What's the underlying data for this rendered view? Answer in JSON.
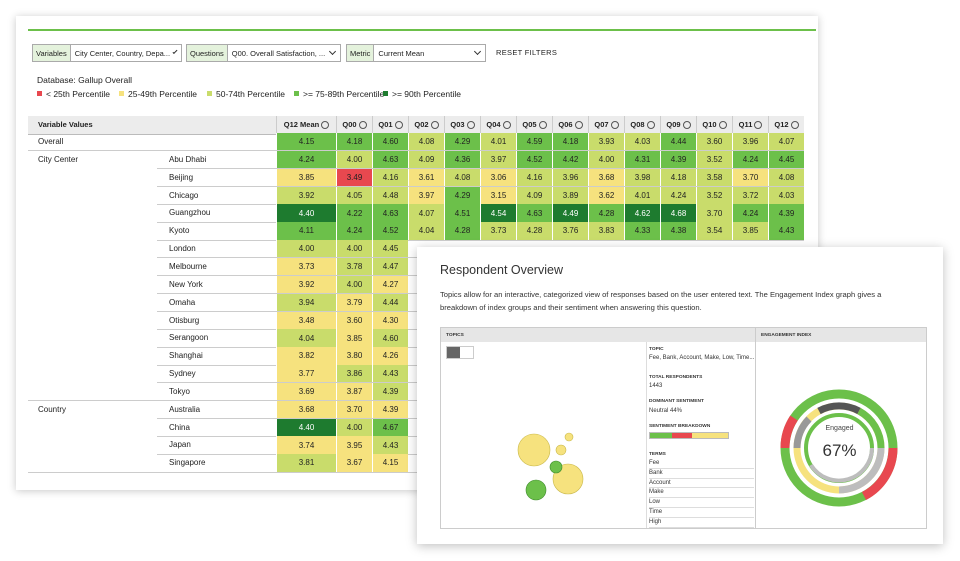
{
  "filters": [
    {
      "label": "Variables",
      "value": "City Center, Country, Depa..."
    },
    {
      "label": "Questions",
      "value": "Q00. Overall Satisfaction, ..."
    },
    {
      "label": "Metric",
      "value": "Current Mean"
    }
  ],
  "reset": "RESET FILTERS",
  "database": "Database: Gallup Overall",
  "legend": [
    {
      "label": "< 25th Percentile",
      "color": "#e8484f"
    },
    {
      "label": "25-49th Percentile",
      "color": "#f6e27e"
    },
    {
      "label": "50-74th Percentile",
      "color": "#c9dc6b"
    },
    {
      "label": ">= 75-89th Percentile",
      "color": "#6cc04a"
    },
    {
      "label": ">= 90th Percentile",
      "color": "#1e7b2f"
    }
  ],
  "table": {
    "columns": [
      "Variable Values",
      "Q12 Mean",
      "Q00",
      "Q01",
      "Q02",
      "Q03",
      "Q04",
      "Q05",
      "Q06",
      "Q07",
      "Q08",
      "Q09",
      "Q10",
      "Q11",
      "Q12"
    ],
    "rows": [
      {
        "group": "Overall",
        "values": [
          "4.15",
          "4.18",
          "4.60",
          "4.08",
          "4.29",
          "4.01",
          "4.59",
          "4.18",
          "3.93",
          "4.03",
          "4.44",
          "3.60",
          "3.96",
          "4.07"
        ],
        "colors": [
          "#6cc04a",
          "#6cc04a",
          "#6cc04a",
          "#c9dc6b",
          "#6cc04a",
          "#c9dc6b",
          "#6cc04a",
          "#6cc04a",
          "#c9dc6b",
          "#c9dc6b",
          "#6cc04a",
          "#c9dc6b",
          "#c9dc6b",
          "#c9dc6b"
        ]
      },
      {
        "group": "City Center",
        "label": "Abu Dhabi",
        "values": [
          "4.24",
          "4.00",
          "4.63",
          "4.09",
          "4.36",
          "3.97",
          "4.52",
          "4.42",
          "4.00",
          "4.31",
          "4.39",
          "3.52",
          "4.24",
          "4.45"
        ],
        "colors": [
          "#6cc04a",
          "#c9dc6b",
          "#6cc04a",
          "#c9dc6b",
          "#6cc04a",
          "#c9dc6b",
          "#6cc04a",
          "#6cc04a",
          "#c9dc6b",
          "#6cc04a",
          "#6cc04a",
          "#c9dc6b",
          "#6cc04a",
          "#6cc04a"
        ]
      },
      {
        "label": "Beijing",
        "values": [
          "3.85",
          "3.49",
          "4.16",
          "3.61",
          "4.08",
          "3.06",
          "4.16",
          "3.96",
          "3.68",
          "3.98",
          "4.18",
          "3.58",
          "3.70",
          "4.08"
        ],
        "colors": [
          "#f6e27e",
          "#e8484f",
          "#c9dc6b",
          "#f6e27e",
          "#c9dc6b",
          "#f6e27e",
          "#c9dc6b",
          "#c9dc6b",
          "#f6e27e",
          "#c9dc6b",
          "#c9dc6b",
          "#c9dc6b",
          "#f6e27e",
          "#c9dc6b"
        ]
      },
      {
        "label": "Chicago",
        "values": [
          "3.92",
          "4.05",
          "4.48",
          "3.97",
          "4.29",
          "3.15",
          "4.09",
          "3.89",
          "3.62",
          "4.01",
          "4.24",
          "3.52",
          "3.72",
          "4.03"
        ],
        "colors": [
          "#c9dc6b",
          "#c9dc6b",
          "#c9dc6b",
          "#f6e27e",
          "#6cc04a",
          "#f6e27e",
          "#c9dc6b",
          "#c9dc6b",
          "#f6e27e",
          "#c9dc6b",
          "#c9dc6b",
          "#c9dc6b",
          "#c9dc6b",
          "#c9dc6b"
        ]
      },
      {
        "label": "Guangzhou",
        "values": [
          "4.40",
          "4.22",
          "4.63",
          "4.07",
          "4.51",
          "4.54",
          "4.63",
          "4.49",
          "4.28",
          "4.62",
          "4.68",
          "3.70",
          "4.24",
          "4.39"
        ],
        "colors": [
          "#1e7b2f",
          "#6cc04a",
          "#6cc04a",
          "#c9dc6b",
          "#6cc04a",
          "#1e7b2f",
          "#6cc04a",
          "#1e7b2f",
          "#6cc04a",
          "#1e7b2f",
          "#1e7b2f",
          "#c9dc6b",
          "#6cc04a",
          "#6cc04a"
        ]
      },
      {
        "label": "Kyoto",
        "values": [
          "4.11",
          "4.24",
          "4.52",
          "4.04",
          "4.28",
          "3.73",
          "4.28",
          "3.76",
          "3.83",
          "4.33",
          "4.38",
          "3.54",
          "3.85",
          "4.43"
        ],
        "colors": [
          "#6cc04a",
          "#6cc04a",
          "#6cc04a",
          "#c9dc6b",
          "#6cc04a",
          "#c9dc6b",
          "#c9dc6b",
          "#c9dc6b",
          "#c9dc6b",
          "#6cc04a",
          "#6cc04a",
          "#c9dc6b",
          "#c9dc6b",
          "#6cc04a"
        ]
      },
      {
        "label": "London",
        "values": [
          "4.00",
          "4.00",
          "4.45"
        ],
        "colors": [
          "#c9dc6b",
          "#c9dc6b",
          "#c9dc6b"
        ]
      },
      {
        "label": "Melbourne",
        "values": [
          "3.73",
          "3.78",
          "4.47"
        ],
        "colors": [
          "#f6e27e",
          "#c9dc6b",
          "#c9dc6b"
        ]
      },
      {
        "label": "New York",
        "values": [
          "3.92",
          "4.00",
          "4.27"
        ],
        "colors": [
          "#f6e27e",
          "#c9dc6b",
          "#f6e27e"
        ]
      },
      {
        "label": "Omaha",
        "values": [
          "3.94",
          "3.79",
          "4.44"
        ],
        "colors": [
          "#c9dc6b",
          "#f6e27e",
          "#c9dc6b"
        ]
      },
      {
        "label": "Otisburg",
        "values": [
          "3.48",
          "3.60",
          "4.30"
        ],
        "colors": [
          "#f6e27e",
          "#f6e27e",
          "#f6e27e"
        ]
      },
      {
        "label": "Serangoon",
        "values": [
          "4.04",
          "3.85",
          "4.60"
        ],
        "colors": [
          "#c9dc6b",
          "#f6e27e",
          "#c9dc6b"
        ]
      },
      {
        "label": "Shanghai",
        "values": [
          "3.82",
          "3.80",
          "4.26"
        ],
        "colors": [
          "#f6e27e",
          "#f6e27e",
          "#f6e27e"
        ]
      },
      {
        "label": "Sydney",
        "values": [
          "3.77",
          "3.86",
          "4.43"
        ],
        "colors": [
          "#f6e27e",
          "#c9dc6b",
          "#c9dc6b"
        ]
      },
      {
        "label": "Tokyo",
        "values": [
          "3.69",
          "3.87",
          "4.39"
        ],
        "colors": [
          "#f6e27e",
          "#f6e27e",
          "#c9dc6b"
        ]
      },
      {
        "group": "Country",
        "label": "Australia",
        "values": [
          "3.68",
          "3.70",
          "4.39"
        ],
        "colors": [
          "#f6e27e",
          "#f6e27e",
          "#f6e27e"
        ]
      },
      {
        "label": "China",
        "values": [
          "4.40",
          "4.00",
          "4.67"
        ],
        "colors": [
          "#1e7b2f",
          "#c9dc6b",
          "#6cc04a"
        ]
      },
      {
        "label": "Japan",
        "values": [
          "3.74",
          "3.95",
          "4.43"
        ],
        "colors": [
          "#f6e27e",
          "#f6e27e",
          "#c9dc6b"
        ]
      },
      {
        "label": "Singapore",
        "values": [
          "3.81",
          "3.67",
          "4.15"
        ],
        "colors": [
          "#c9dc6b",
          "#f6e27e",
          "#f6e27e"
        ]
      }
    ]
  },
  "overview": {
    "title": "Respondent Overview",
    "description": "Topics allow for an interactive, categorized view of responses based on the user entered text. The Engagement Index graph gives a breakdown of index groups and their sentiment when answering this question.",
    "topics_header": "TOPICS",
    "engagement_header": "ENGAGEMENT INDEX",
    "topic_label": "TOPIC",
    "topic_value": "Fee, Bank, Account, Make, Low, Time...",
    "respondents_label": "TOTAL RESPONDENTS",
    "respondents_value": "1443",
    "sentiment_label": "DOMINANT SENTIMENT",
    "sentiment_value": "Neutral 44%",
    "breakdown_label": "SENTIMENT BREAKDOWN",
    "terms_label": "TERMS",
    "terms": [
      "Fee",
      "Bank",
      "Account",
      "Make",
      "Low",
      "Time",
      "High"
    ],
    "engaged_label": "Engaged",
    "engaged_value": "67%"
  }
}
